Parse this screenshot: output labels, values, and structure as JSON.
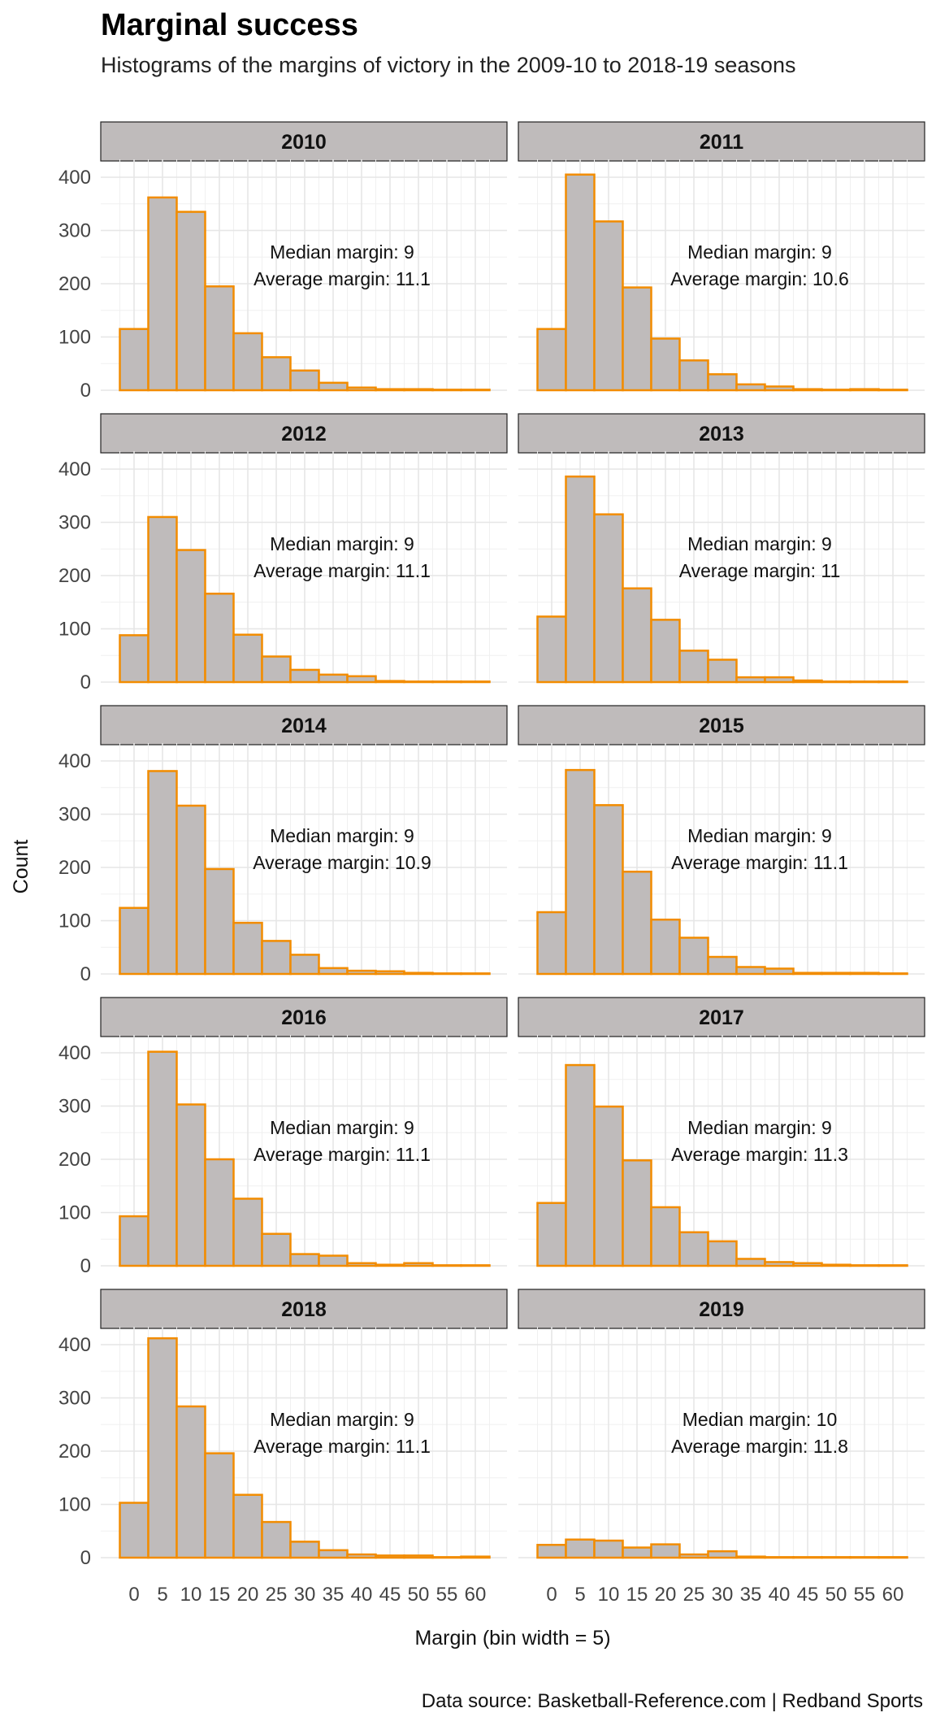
{
  "title": "Marginal success",
  "subtitle": "Histograms of the margins of victory in the 2009-10 to 2018-19 seasons",
  "caption": "Data source: Basketball-Reference.com  |  Redband Sports",
  "colors": {
    "bar_fill": "#bfbbbb",
    "bar_stroke": "#f28c00",
    "strip_fill": "#bfbbbb",
    "grid": "#e6e6e6"
  },
  "chart_data": {
    "type": "bar",
    "subtype": "faceted-histogram",
    "xlabel": "Margin (bin width = 5)",
    "ylabel": "Count",
    "bin_width": 5,
    "bins": [
      "-2.5–2.5",
      "2.5–7.5",
      "7.5–12.5",
      "12.5–17.5",
      "17.5–22.5",
      "22.5–27.5",
      "27.5–32.5",
      "32.5–37.5",
      "37.5–42.5",
      "42.5–47.5",
      "47.5–52.5",
      "52.5–57.5",
      "57.5–62.5"
    ],
    "x_ticks": [
      0,
      5,
      10,
      15,
      20,
      25,
      30,
      35,
      40,
      45,
      50,
      55,
      60
    ],
    "xlim": [
      -3,
      64
    ],
    "y_ticks": [
      0,
      100,
      200,
      300,
      400
    ],
    "ylim": [
      0,
      440
    ],
    "grid": true,
    "median_label": "Median margin: ",
    "average_label": "Average margin: ",
    "facets": [
      {
        "name": "2010",
        "values": [
          115,
          362,
          335,
          195,
          107,
          62,
          37,
          14,
          5,
          2,
          2,
          1,
          1
        ],
        "median": "9",
        "average": "11.1"
      },
      {
        "name": "2011",
        "values": [
          115,
          405,
          317,
          193,
          97,
          56,
          30,
          11,
          7,
          2,
          1,
          2,
          1
        ],
        "median": "9",
        "average": "10.6"
      },
      {
        "name": "2012",
        "values": [
          88,
          310,
          248,
          166,
          89,
          48,
          23,
          14,
          11,
          2,
          1,
          1,
          1
        ],
        "median": "9",
        "average": "11.1"
      },
      {
        "name": "2013",
        "values": [
          123,
          386,
          315,
          176,
          117,
          59,
          42,
          9,
          9,
          3,
          1,
          1,
          1
        ],
        "median": "9",
        "average": "11"
      },
      {
        "name": "2014",
        "values": [
          124,
          381,
          316,
          197,
          96,
          62,
          36,
          11,
          6,
          5,
          2,
          1,
          1
        ],
        "median": "9",
        "average": "10.9"
      },
      {
        "name": "2015",
        "values": [
          116,
          383,
          317,
          192,
          102,
          68,
          32,
          13,
          10,
          2,
          2,
          2,
          1
        ],
        "median": "9",
        "average": "11.1"
      },
      {
        "name": "2016",
        "values": [
          93,
          402,
          303,
          200,
          126,
          60,
          22,
          19,
          5,
          2,
          5,
          1,
          1
        ],
        "median": "9",
        "average": "11.1"
      },
      {
        "name": "2017",
        "values": [
          118,
          377,
          299,
          198,
          110,
          63,
          46,
          13,
          7,
          5,
          2,
          1,
          1
        ],
        "median": "9",
        "average": "11.3"
      },
      {
        "name": "2018",
        "values": [
          103,
          412,
          284,
          196,
          118,
          67,
          30,
          14,
          6,
          4,
          4,
          1,
          2
        ],
        "median": "9",
        "average": "11.1"
      },
      {
        "name": "2019",
        "values": [
          24,
          34,
          32,
          19,
          25,
          6,
          12,
          2,
          1,
          1,
          1,
          1,
          1
        ],
        "median": "10",
        "average": "11.8"
      }
    ]
  }
}
